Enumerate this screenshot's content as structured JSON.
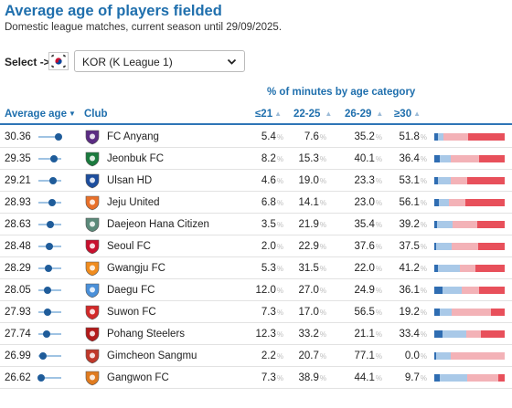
{
  "title": "Average age of players fielded",
  "subtitle": "Domestic league matches, current season until 29/09/2025.",
  "select": {
    "label": "Select ->",
    "value": "KOR (K League 1)",
    "flag_icon": "south-korea-flag-icon"
  },
  "group_header": "% of minutes by age category",
  "headers": {
    "avg_age": "Average age",
    "club": "Club",
    "u21": "≤21",
    "a22_25": "22-25",
    "a26_29": "26-29",
    "o30": "≥30"
  },
  "sort": {
    "column": "avg_age",
    "direction": "descending"
  },
  "colors": {
    "accent": "#1f6fad",
    "u21": "#2f6db2",
    "a22_25": "#a9c9e8",
    "a26_29": "#f3b2b7",
    "o30": "#e8505b"
  },
  "age_scale": [
    26.0,
    31.0
  ],
  "rows": [
    {
      "avg": "30.36",
      "club": "FC Anyang",
      "logo": "fc-anyang-crest-icon",
      "logo_color": "#5b2c83",
      "u21": "5.4",
      "a22_25": "7.6",
      "a26_29": "35.2",
      "o30": "51.8",
      "u21_v": 5.4,
      "a22_25_v": 7.6,
      "a26_29_v": 35.2,
      "o30_v": 51.8
    },
    {
      "avg": "29.35",
      "club": "Jeonbuk FC",
      "logo": "jeonbuk-crest-icon",
      "logo_color": "#1b7a3e",
      "u21": "8.2",
      "a22_25": "15.3",
      "a26_29": "40.1",
      "o30": "36.4",
      "u21_v": 8.2,
      "a22_25_v": 15.3,
      "a26_29_v": 40.1,
      "o30_v": 36.4
    },
    {
      "avg": "29.21",
      "club": "Ulsan HD",
      "logo": "ulsan-crest-icon",
      "logo_color": "#1d4e9e",
      "u21": "4.6",
      "a22_25": "19.0",
      "a26_29": "23.3",
      "o30": "53.1",
      "u21_v": 4.6,
      "a22_25_v": 19.0,
      "a26_29_v": 23.3,
      "o30_v": 53.1
    },
    {
      "avg": "28.93",
      "club": "Jeju United",
      "logo": "jeju-crest-icon",
      "logo_color": "#e8702a",
      "u21": "6.8",
      "a22_25": "14.1",
      "a26_29": "23.0",
      "o30": "56.1",
      "u21_v": 6.8,
      "a22_25_v": 14.1,
      "a26_29_v": 23.0,
      "o30_v": 56.1
    },
    {
      "avg": "28.63",
      "club": "Daejeon Hana Citizen",
      "logo": "daejeon-crest-icon",
      "logo_color": "#5c8a7a",
      "u21": "3.5",
      "a22_25": "21.9",
      "a26_29": "35.4",
      "o30": "39.2",
      "u21_v": 3.5,
      "a22_25_v": 21.9,
      "a26_29_v": 35.4,
      "o30_v": 39.2
    },
    {
      "avg": "28.48",
      "club": "Seoul FC",
      "logo": "seoul-crest-icon",
      "logo_color": "#c8102e",
      "u21": "2.0",
      "a22_25": "22.9",
      "a26_29": "37.6",
      "o30": "37.5",
      "u21_v": 2.0,
      "a22_25_v": 22.9,
      "a26_29_v": 37.6,
      "o30_v": 37.5
    },
    {
      "avg": "28.29",
      "club": "Gwangju FC",
      "logo": "gwangju-crest-icon",
      "logo_color": "#f08c1e",
      "u21": "5.3",
      "a22_25": "31.5",
      "a26_29": "22.0",
      "o30": "41.2",
      "u21_v": 5.3,
      "a22_25_v": 31.5,
      "a26_29_v": 22.0,
      "o30_v": 41.2
    },
    {
      "avg": "28.05",
      "club": "Daegu FC",
      "logo": "daegu-crest-icon",
      "logo_color": "#4a90d9",
      "u21": "12.0",
      "a22_25": "27.0",
      "a26_29": "24.9",
      "o30": "36.1",
      "u21_v": 12.0,
      "a22_25_v": 27.0,
      "a26_29_v": 24.9,
      "o30_v": 36.1
    },
    {
      "avg": "27.93",
      "club": "Suwon FC",
      "logo": "suwon-crest-icon",
      "logo_color": "#d22a2a",
      "u21": "7.3",
      "a22_25": "17.0",
      "a26_29": "56.5",
      "o30": "19.2",
      "u21_v": 7.3,
      "a22_25_v": 17.0,
      "a26_29_v": 56.5,
      "o30_v": 19.2
    },
    {
      "avg": "27.74",
      "club": "Pohang Steelers",
      "logo": "pohang-crest-icon",
      "logo_color": "#b31b1b",
      "u21": "12.3",
      "a22_25": "33.2",
      "a26_29": "21.1",
      "o30": "33.4",
      "u21_v": 12.3,
      "a22_25_v": 33.2,
      "a26_29_v": 21.1,
      "o30_v": 33.4
    },
    {
      "avg": "26.99",
      "club": "Gimcheon Sangmu",
      "logo": "gimcheon-crest-icon",
      "logo_color": "#c0392b",
      "u21": "2.2",
      "a22_25": "20.7",
      "a26_29": "77.1",
      "o30": "0.0",
      "u21_v": 2.2,
      "a22_25_v": 20.7,
      "a26_29_v": 77.1,
      "o30_v": 0.0
    },
    {
      "avg": "26.62",
      "club": "Gangwon FC",
      "logo": "gangwon-crest-icon",
      "logo_color": "#e07b1f",
      "u21": "7.3",
      "a22_25": "38.9",
      "a26_29": "44.1",
      "o30": "9.7",
      "u21_v": 7.3,
      "a22_25_v": 38.9,
      "a26_29_v": 44.1,
      "o30_v": 9.7
    }
  ]
}
